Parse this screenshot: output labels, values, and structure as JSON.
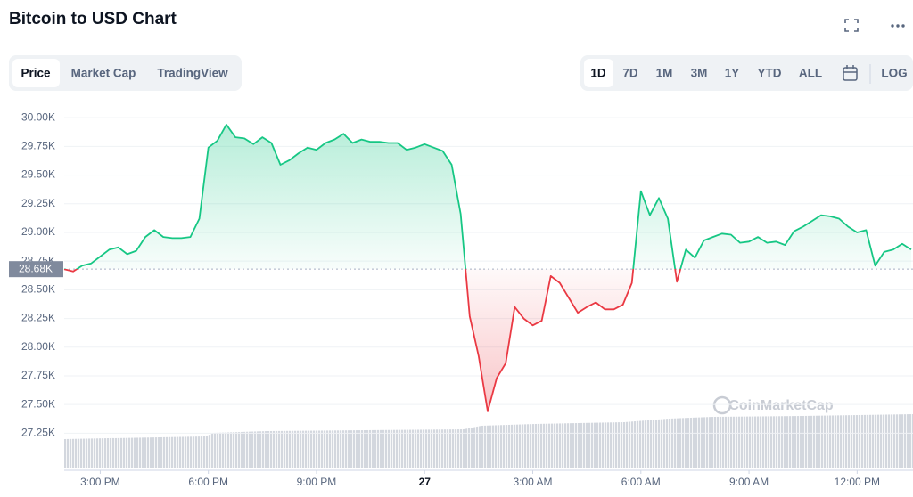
{
  "chart_data": {
    "type": "line",
    "title": "Bitcoin to USD Chart",
    "tabs": [
      "Price",
      "Market Cap",
      "TradingView"
    ],
    "ranges": [
      "1D",
      "7D",
      "1M",
      "3M",
      "1Y",
      "YTD",
      "ALL"
    ],
    "log_label": "LOG",
    "watermark": "CoinMarketCap",
    "up_color": "#16c784",
    "down_color": "#ea3943",
    "reference": {
      "value": 28680,
      "label": "28.68K"
    },
    "xlim": [
      14,
      37.55
    ],
    "ylim": [
      26950,
      30110
    ],
    "grid": true,
    "xticks": [
      {
        "value": 15,
        "label": "3:00 PM"
      },
      {
        "value": 18,
        "label": "6:00 PM"
      },
      {
        "value": 21,
        "label": "9:00 PM"
      },
      {
        "value": 24,
        "label": "27"
      },
      {
        "value": 27,
        "label": "3:00 AM"
      },
      {
        "value": 30,
        "label": "6:00 AM"
      },
      {
        "value": 33,
        "label": "9:00 AM"
      },
      {
        "value": 36,
        "label": "12:00 PM"
      }
    ],
    "yticks": [
      {
        "value": 27250,
        "label": "27.25K"
      },
      {
        "value": 27500,
        "label": "27.50K"
      },
      {
        "value": 27750,
        "label": "27.75K"
      },
      {
        "value": 28000,
        "label": "28.00K"
      },
      {
        "value": 28250,
        "label": "28.25K"
      },
      {
        "value": 28500,
        "label": "28.50K"
      },
      {
        "value": 28750,
        "label": "28.75K"
      },
      {
        "value": 29000,
        "label": "29.00K"
      },
      {
        "value": 29250,
        "label": "29.25K"
      },
      {
        "value": 29500,
        "label": "29.50K"
      },
      {
        "value": 29750,
        "label": "29.75K"
      },
      {
        "value": 30000,
        "label": "30.00K"
      }
    ],
    "x": [
      14,
      14.25,
      14.5,
      14.75,
      15,
      15.25,
      15.5,
      15.75,
      16,
      16.25,
      16.5,
      16.75,
      17,
      17.25,
      17.5,
      17.75,
      18,
      18.25,
      18.5,
      18.75,
      19,
      19.25,
      19.5,
      19.75,
      20,
      20.25,
      20.5,
      20.75,
      21,
      21.25,
      21.5,
      21.75,
      22,
      22.25,
      22.5,
      22.75,
      23,
      23.25,
      23.5,
      23.75,
      24,
      24.25,
      24.5,
      24.75,
      25,
      25.25,
      25.5,
      25.75,
      26,
      26.25,
      26.5,
      26.75,
      27,
      27.25,
      27.5,
      27.75,
      28,
      28.25,
      28.5,
      28.75,
      29,
      29.25,
      29.5,
      29.75,
      30,
      30.25,
      30.5,
      30.75,
      31,
      31.25,
      31.5,
      31.75,
      32,
      32.25,
      32.5,
      32.75,
      33,
      33.25,
      33.5,
      33.75,
      34,
      34.25,
      34.5,
      34.75,
      35,
      35.25,
      35.5,
      35.75,
      36,
      36.25,
      36.5,
      36.75,
      37,
      37.25,
      37.5
    ],
    "values": [
      28680,
      28660,
      28710,
      28730,
      28790,
      28850,
      28870,
      28810,
      28840,
      28960,
      29020,
      28960,
      28950,
      28950,
      28960,
      29120,
      29740,
      29800,
      29940,
      29830,
      29820,
      29770,
      29830,
      29780,
      29590,
      29630,
      29690,
      29740,
      29720,
      29780,
      29810,
      29860,
      29780,
      29810,
      29790,
      29790,
      29780,
      29780,
      29720,
      29740,
      29770,
      29740,
      29710,
      29590,
      29160,
      28270,
      27920,
      27440,
      27730,
      27860,
      28350,
      28250,
      28190,
      28230,
      28620,
      28560,
      28430,
      28300,
      28350,
      28390,
      28330,
      28330,
      28370,
      28560,
      29360,
      29150,
      29300,
      29120,
      28570,
      28850,
      28780,
      28930,
      28960,
      28990,
      28980,
      28910,
      28920,
      28960,
      28910,
      28920,
      28890,
      29010,
      29050,
      29100,
      29150,
      29140,
      29120,
      29050,
      29000,
      29020,
      28710,
      28830,
      28850,
      28900,
      28850
    ]
  }
}
